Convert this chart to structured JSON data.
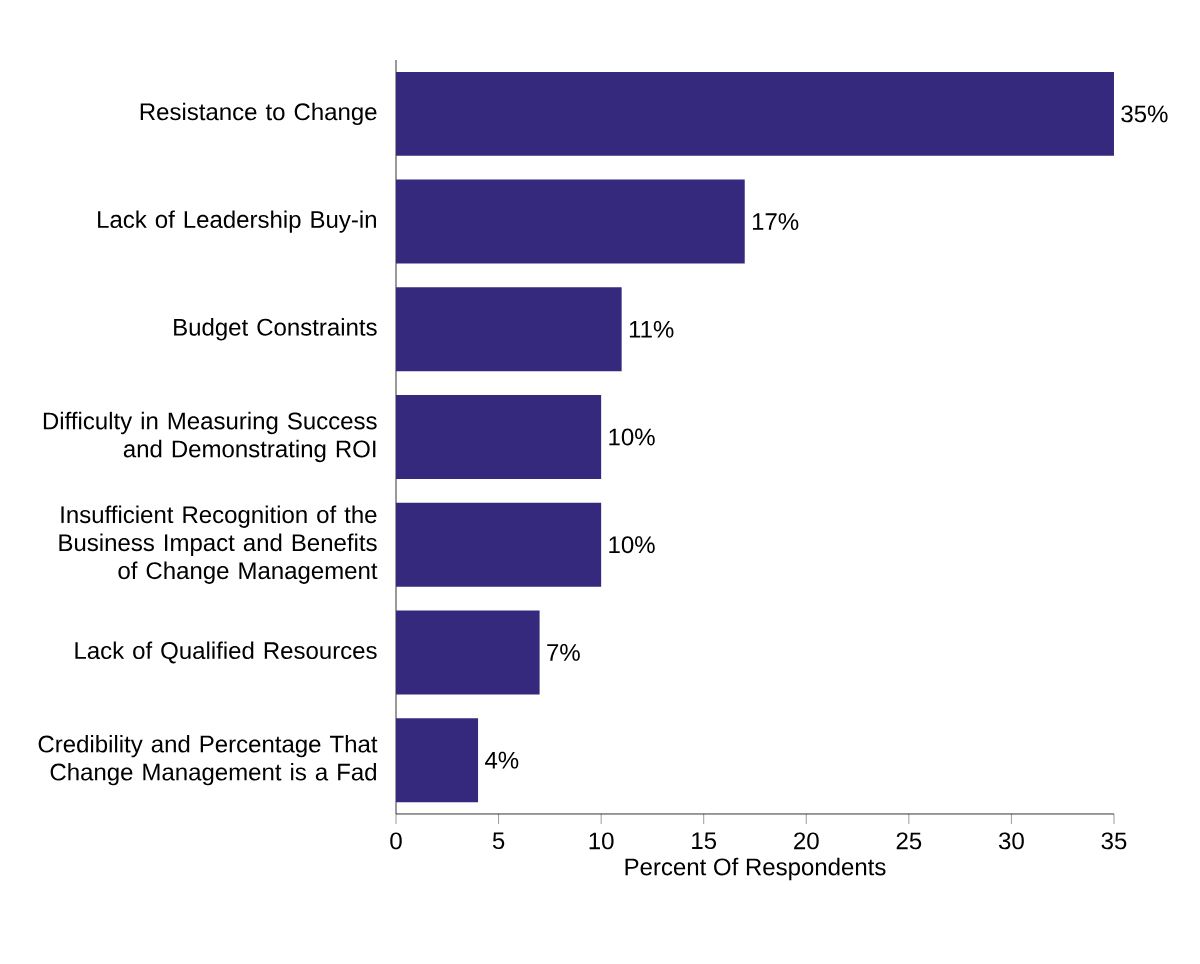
{
  "chart_data": {
    "type": "bar",
    "orientation": "horizontal",
    "categories": [
      "Resistance to Change",
      "Lack of Leadership Buy-in",
      "Budget Constraints",
      "Difficulty in Measuring Success and Demonstrating ROI",
      "Insufficient Recognition of the Business Impact and Benefits of Change Management",
      "Lack of Qualified Resources",
      "Credibility and Percentage That Change Management is a Fad"
    ],
    "values": [
      35,
      17,
      11,
      10,
      10,
      7,
      4
    ],
    "value_labels": [
      "35%",
      "17%",
      "11%",
      "10%",
      "10%",
      "7%",
      "4%"
    ],
    "color": "#35297e",
    "xlabel": "Percent Of Respondents",
    "xlim": [
      0,
      35
    ],
    "xticks": [
      0,
      5,
      10,
      15,
      20,
      25,
      30,
      35
    ]
  }
}
